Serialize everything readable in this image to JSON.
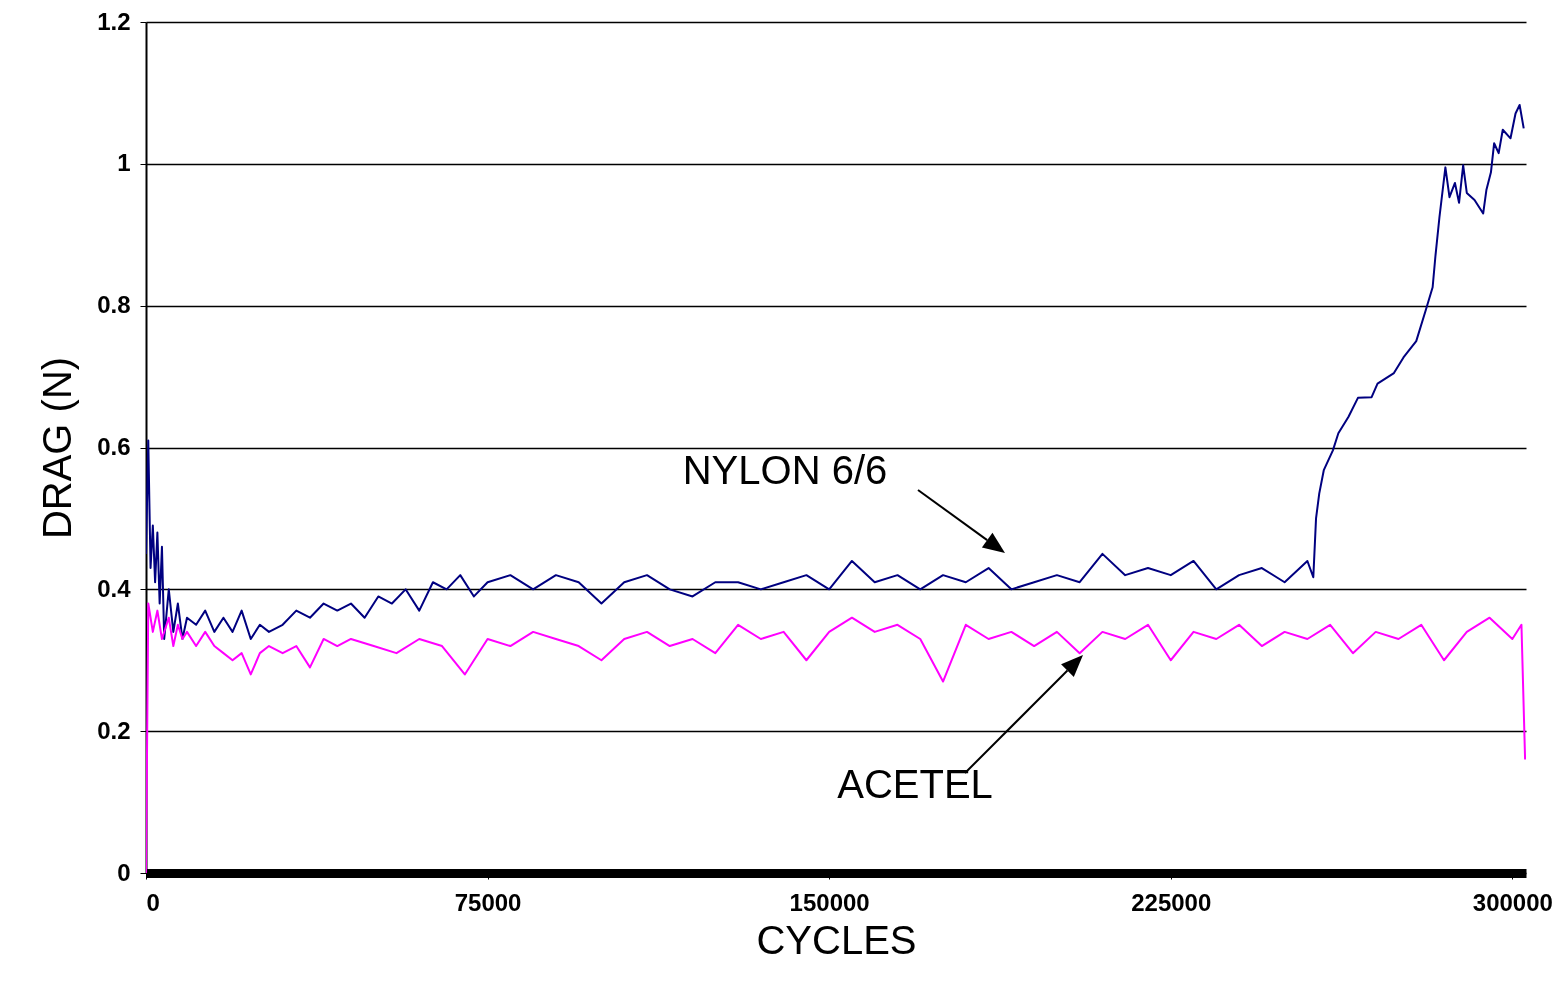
{
  "chart_data": {
    "type": "line",
    "xlabel": "CYCLES",
    "ylabel": "DRAG (N)",
    "xlim": [
      0,
      303000
    ],
    "xticks": [
      0,
      75000,
      150000,
      225000,
      300000
    ],
    "ylim": [
      0,
      1.2
    ],
    "yticks": [
      0,
      0.2,
      0.4,
      0.6,
      0.8,
      1,
      1.2
    ],
    "grid": "y",
    "line_style": "solid",
    "series": [
      {
        "color": "#000080",
        "x": [
          0,
          500,
          1000,
          1500,
          2000,
          2500,
          3000,
          3500,
          4000,
          5000,
          6000,
          7000,
          8000,
          9000,
          11000,
          13000,
          15000,
          17000,
          19000,
          21000,
          23000,
          25000,
          27000,
          30000,
          33000,
          36000,
          39000,
          42000,
          45000,
          48000,
          51000,
          54000,
          57000,
          60000,
          63000,
          66000,
          69000,
          72000,
          75000,
          80000,
          85000,
          90000,
          95000,
          100000,
          105000,
          110000,
          115000,
          120000,
          125000,
          130000,
          135000,
          140000,
          145000,
          150000,
          155000,
          160000,
          165000,
          170000,
          175000,
          180000,
          185000,
          190000,
          195000,
          200000,
          205000,
          210000,
          215000,
          220000,
          225000,
          230000,
          235000,
          240000,
          245000,
          250000,
          255000,
          256300,
          256900,
          257600,
          258600,
          260600,
          261800,
          264000,
          266100,
          269100,
          270400,
          274000,
          276100,
          278900,
          281000,
          282500,
          283100,
          284000,
          285300,
          286200,
          287400,
          288300,
          289200,
          290000,
          291700,
          293600,
          294300,
          295300,
          296000,
          297000,
          297900,
          299600,
          300700,
          301600,
          302500
        ],
        "values": [
          0.45,
          0.61,
          0.43,
          0.49,
          0.41,
          0.48,
          0.38,
          0.46,
          0.33,
          0.4,
          0.34,
          0.38,
          0.33,
          0.36,
          0.35,
          0.37,
          0.34,
          0.36,
          0.34,
          0.37,
          0.33,
          0.35,
          0.34,
          0.35,
          0.37,
          0.36,
          0.38,
          0.37,
          0.38,
          0.36,
          0.39,
          0.38,
          0.4,
          0.37,
          0.41,
          0.4,
          0.42,
          0.39,
          0.41,
          0.42,
          0.4,
          0.42,
          0.41,
          0.38,
          0.41,
          0.42,
          0.4,
          0.39,
          0.41,
          0.41,
          0.4,
          0.41,
          0.42,
          0.4,
          0.44,
          0.41,
          0.42,
          0.4,
          0.42,
          0.41,
          0.43,
          0.4,
          0.41,
          0.42,
          0.41,
          0.45,
          0.42,
          0.43,
          0.42,
          0.44,
          0.4,
          0.42,
          0.43,
          0.41,
          0.44,
          0.417,
          0.5,
          0.535,
          0.568,
          0.596,
          0.62,
          0.643,
          0.67,
          0.671,
          0.69,
          0.705,
          0.727,
          0.75,
          0.794,
          0.826,
          0.869,
          0.925,
          0.995,
          0.953,
          0.973,
          0.945,
          0.998,
          0.959,
          0.949,
          0.93,
          0.963,
          0.988,
          1.029,
          1.015,
          1.048,
          1.036,
          1.071,
          1.083,
          1.05
        ]
      },
      {
        "color": "#ff00ff",
        "x": [
          0,
          500,
          1500,
          2500,
          3500,
          5000,
          6000,
          7000,
          8000,
          9000,
          11000,
          13000,
          15000,
          17000,
          19000,
          21000,
          23000,
          25000,
          27000,
          30000,
          33000,
          36000,
          39000,
          42000,
          45000,
          50000,
          55000,
          60000,
          65000,
          70000,
          75000,
          80000,
          85000,
          90000,
          95000,
          100000,
          105000,
          110000,
          115000,
          120000,
          125000,
          130000,
          135000,
          140000,
          145000,
          150000,
          155000,
          160000,
          165000,
          170000,
          175000,
          180000,
          185000,
          190000,
          195000,
          200000,
          205000,
          210000,
          215000,
          220000,
          225000,
          230000,
          235000,
          240000,
          245000,
          250000,
          255000,
          260000,
          265000,
          270000,
          275000,
          280000,
          285000,
          290000,
          295000,
          300000,
          302000,
          302800
        ],
        "values": [
          0,
          0.38,
          0.34,
          0.37,
          0.33,
          0.36,
          0.32,
          0.35,
          0.33,
          0.34,
          0.32,
          0.34,
          0.32,
          0.31,
          0.3,
          0.31,
          0.28,
          0.31,
          0.32,
          0.31,
          0.32,
          0.29,
          0.33,
          0.32,
          0.33,
          0.32,
          0.31,
          0.33,
          0.32,
          0.28,
          0.33,
          0.32,
          0.34,
          0.33,
          0.32,
          0.3,
          0.33,
          0.34,
          0.32,
          0.33,
          0.31,
          0.35,
          0.33,
          0.34,
          0.3,
          0.34,
          0.36,
          0.34,
          0.35,
          0.33,
          0.27,
          0.35,
          0.33,
          0.34,
          0.32,
          0.34,
          0.31,
          0.34,
          0.33,
          0.35,
          0.3,
          0.34,
          0.33,
          0.35,
          0.32,
          0.34,
          0.33,
          0.35,
          0.31,
          0.34,
          0.33,
          0.35,
          0.3,
          0.34,
          0.36,
          0.33,
          0.35,
          0.16
        ]
      }
    ],
    "annotations": [
      "NYLON 6/6",
      "ACETEL"
    ]
  }
}
